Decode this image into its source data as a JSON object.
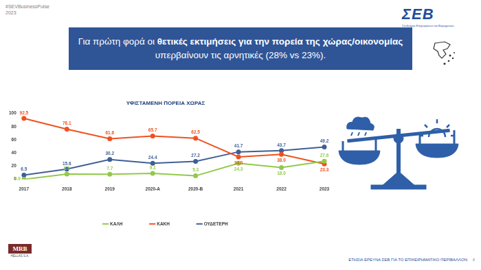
{
  "header": {
    "hashtag": "#SEVBusinessPulse",
    "year": "2023"
  },
  "logo": {
    "name": "ΣΕΒ",
    "tagline": "Σύνδεσμος Επιχειρήσεων και Βιομηχανιών"
  },
  "headline": {
    "before": "Για πρώτη φορά οι ",
    "bold": "θετικές εκτιμήσεις για την πορεία της χώρας/οικονομίας",
    "after": "υπερβαίνουν τις αρνητικές (28% vs 23%)."
  },
  "footer": {
    "source": "MRB",
    "source_sub": "HELLAS S.A.",
    "survey": "ΕΤΗΣΙΑ ΕΡΕΥΝΑ ΣΕΒ ΓΙΑ ΤΟ ΕΠΙΧΕΙΡΗΜΑΤΙΚΟ ΠΕΡΙΒΑΛΛΟΝ",
    "page": "8"
  },
  "chart_data": {
    "type": "line",
    "title": "ΥΦΙΣΤΑΜΕΝΗ ΠΟΡΕΙΑ ΧΩΡΑΣ",
    "categories": [
      "2017",
      "2018",
      "2019",
      "2020-A",
      "2020-B",
      "2021",
      "2022",
      "2023"
    ],
    "series": [
      {
        "name": "ΚΑΛΗ",
        "color": "#92c94a",
        "marker": "circle",
        "values": [
          0.0,
          8.0,
          7.7,
          9.1,
          5.3,
          24.3,
          18.0,
          27.6
        ],
        "value_labels": [
          "0.0",
          "8.0",
          "7.7",
          "9.1",
          "5.3",
          "24.3",
          "18.0",
          "27.6"
        ]
      },
      {
        "name": "ΚΑΚΗ",
        "color": "#f0501e",
        "marker": "circle",
        "values": [
          92.5,
          76.1,
          61.6,
          65.7,
          62.5,
          34.0,
          38.0,
          23.3
        ],
        "value_labels": [
          "92.5",
          "76.1",
          "61.6",
          "65.7",
          "62.5",
          "34.0",
          "38.0",
          "23.3"
        ]
      },
      {
        "name": "ΟΥΔΕΤΕΡΗ",
        "color": "#3f5f96",
        "marker": "circle",
        "values": [
          6.5,
          15.6,
          30.2,
          24.4,
          27.2,
          41.7,
          43.7,
          49.2
        ],
        "value_labels": [
          "6.5",
          "15.6",
          "30.2",
          "24.4",
          "27.2",
          "41.7",
          "43.7",
          "49.2"
        ]
      }
    ],
    "ylim": [
      0,
      100
    ],
    "yticks": [
      0,
      20,
      40,
      60,
      80,
      100
    ],
    "grid": false,
    "legend": "bottom",
    "data_labels": true
  }
}
